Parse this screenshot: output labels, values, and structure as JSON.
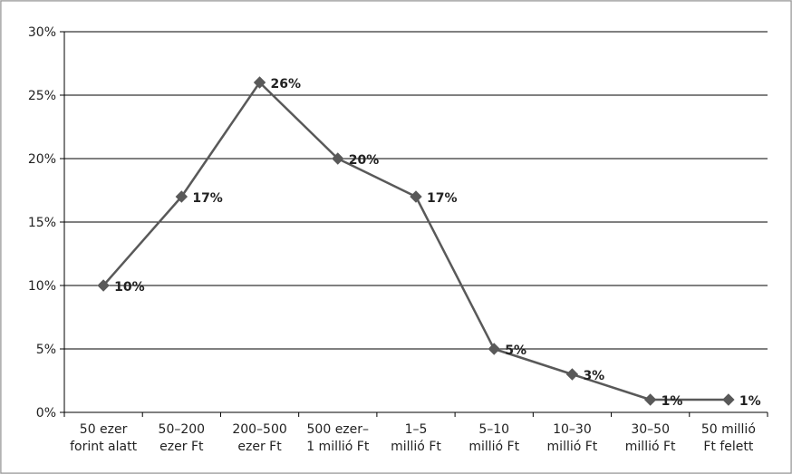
{
  "chart_data": {
    "type": "line",
    "title": "",
    "xlabel": "",
    "ylabel": "",
    "categories": [
      [
        "50 ezer",
        "forint alatt"
      ],
      [
        "50–200",
        "ezer Ft"
      ],
      [
        "200–500",
        "ezer Ft"
      ],
      [
        "500 ezer–",
        "1 millió Ft"
      ],
      [
        "1–5",
        "millió Ft"
      ],
      [
        "5–10",
        "millió Ft"
      ],
      [
        "10–30",
        "millió Ft"
      ],
      [
        "30–50",
        "millió Ft"
      ],
      [
        "50 millió",
        "Ft felett"
      ]
    ],
    "values": [
      10,
      17,
      26,
      20,
      17,
      5,
      3,
      1,
      1
    ],
    "data_labels": [
      "10%",
      "17%",
      "26%",
      "20%",
      "17%",
      "5%",
      "3%",
      "1%",
      "1%"
    ],
    "ylim": [
      0,
      30
    ],
    "y_ticks": [
      0,
      5,
      10,
      15,
      20,
      25,
      30
    ],
    "y_tick_labels": [
      "0%",
      "5%",
      "10%",
      "15%",
      "20%",
      "25%",
      "30%"
    ],
    "grid": true,
    "legend": "none",
    "colors": {
      "line": "#595959",
      "marker": "#595959",
      "gridline": "#000000",
      "plot_background": "#ffffff",
      "outer_background": "#d9d9d9"
    }
  }
}
